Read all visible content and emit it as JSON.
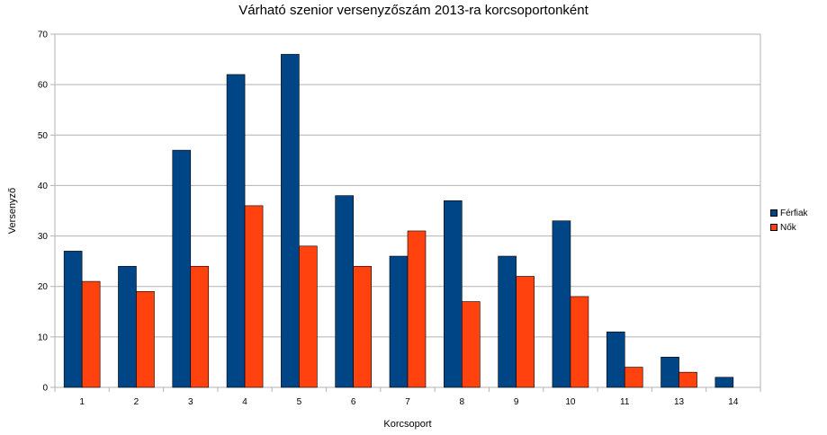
{
  "chart_data": {
    "type": "bar",
    "title": "Várható szenior versenyzőszám 2013-ra korcsoportonként",
    "xlabel": "Korcsoport",
    "ylabel": "Versenyző",
    "categories": [
      "1",
      "2",
      "3",
      "4",
      "5",
      "6",
      "7",
      "8",
      "9",
      "10",
      "11",
      "13",
      "14"
    ],
    "series": [
      {
        "name": "Férfiak",
        "color": "#004586",
        "values": [
          27,
          24,
          47,
          62,
          66,
          38,
          26,
          37,
          26,
          33,
          11,
          6,
          2
        ]
      },
      {
        "name": "Nők",
        "color": "#ff420e",
        "values": [
          21,
          19,
          24,
          36,
          28,
          24,
          31,
          17,
          22,
          18,
          4,
          3,
          0
        ]
      }
    ],
    "ylim": [
      0,
      70
    ],
    "yticks": [
      0,
      10,
      20,
      30,
      40,
      50,
      60,
      70
    ],
    "grid": true,
    "legend_position": "right"
  }
}
